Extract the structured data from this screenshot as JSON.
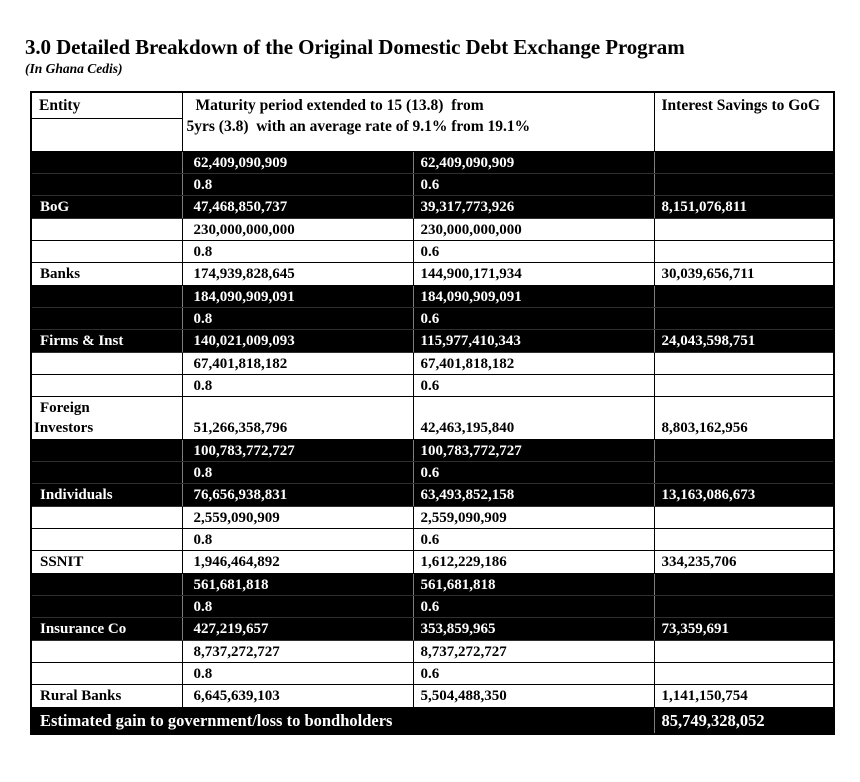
{
  "page": {
    "title": "3.0 Detailed Breakdown of the Original Domestic Debt Exchange Program",
    "subtitle": "(In Ghana Cedis)"
  },
  "colors": {
    "band_dark_bg": "#000000",
    "band_dark_text": "#ffffff",
    "band_light_bg": "#ffffff",
    "band_light_text": "#000000"
  },
  "table": {
    "header": {
      "entity": "Entity",
      "maturity_line1": "Maturity period extended to 15 (13.8)  from",
      "maturity_line2": "5yrs (3.8)  with an average rate of 9.1% from 19.1%",
      "interest": "Interest Savings to GoG"
    },
    "groups": [
      {
        "entity": "BoG",
        "dark": true,
        "principal_a": "62,409,090,909",
        "principal_b": "62,409,090,909",
        "factor_a": "0.8",
        "factor_b": "0.6",
        "amount_a": "47,468,850,737",
        "amount_b": "39,317,773,926",
        "savings": "8,151,076,811"
      },
      {
        "entity": "Banks",
        "dark": false,
        "principal_a": "230,000,000,000",
        "principal_b": "230,000,000,000",
        "factor_a": "0.8",
        "factor_b": "0.6",
        "amount_a": "174,939,828,645",
        "amount_b": "144,900,171,934",
        "savings": "30,039,656,711"
      },
      {
        "entity": "Firms & Inst",
        "dark": true,
        "principal_a": "184,090,909,091",
        "principal_b": "184,090,909,091",
        "factor_a": "0.8",
        "factor_b": "0.6",
        "amount_a": "140,021,009,093",
        "amount_b": "115,977,410,343",
        "savings": "24,043,598,751"
      },
      {
        "entity": "Foreign\nInvestors",
        "dark": false,
        "principal_a": "67,401,818,182",
        "principal_b": "67,401,818,182",
        "factor_a": "0.8",
        "factor_b": "0.6",
        "amount_a": "51,266,358,796",
        "amount_b": "42,463,195,840",
        "savings": "8,803,162,956"
      },
      {
        "entity": "Individuals",
        "dark": true,
        "principal_a": "100,783,772,727",
        "principal_b": "100,783,772,727",
        "factor_a": "0.8",
        "factor_b": "0.6",
        "amount_a": "76,656,938,831",
        "amount_b": "63,493,852,158",
        "savings": "13,163,086,673"
      },
      {
        "entity": "SSNIT",
        "dark": false,
        "principal_a": "2,559,090,909",
        "principal_b": "2,559,090,909",
        "factor_a": "0.8",
        "factor_b": "0.6",
        "amount_a": "1,946,464,892",
        "amount_b": "1,612,229,186",
        "savings": "334,235,706"
      },
      {
        "entity": "Insurance Co",
        "dark": true,
        "principal_a": "561,681,818",
        "principal_b": "561,681,818",
        "factor_a": "0.8",
        "factor_b": "0.6",
        "amount_a": "427,219,657",
        "amount_b": "353,859,965",
        "savings": "73,359,691"
      },
      {
        "entity": "Rural Banks",
        "dark": false,
        "principal_a": "8,737,272,727",
        "principal_b": "8,737,272,727",
        "factor_a": "0.8",
        "factor_b": "0.6",
        "amount_a": "6,645,639,103",
        "amount_b": "5,504,488,350",
        "savings": "1,141,150,754"
      }
    ],
    "footer": {
      "label": "Estimated gain to government/loss to bondholders",
      "value": "85,749,328,052"
    }
  }
}
